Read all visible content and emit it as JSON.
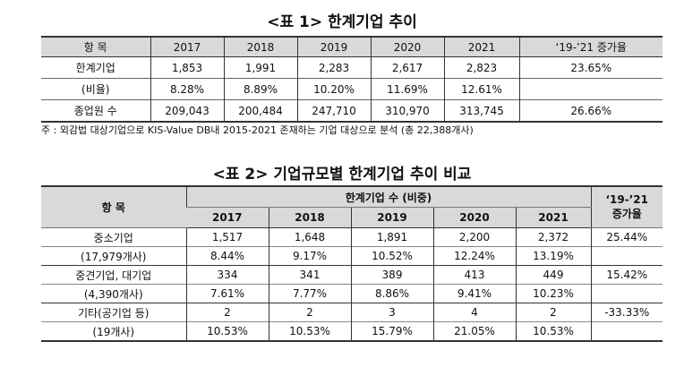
{
  "table1": {
    "title": "<표 1> 한계기업 추이",
    "headers": [
      "항 목",
      "2017",
      "2018",
      "2019",
      "2020",
      "2021",
      "‘19-’21 증가율"
    ],
    "rows": [
      [
        "한계기업",
        "1,853",
        "1,991",
        "2,283",
        "2,617",
        "2,823",
        "23.65%"
      ],
      [
        "(비율)",
        "8.28%",
        "8.89%",
        "10.20%",
        "11.69%",
        "12.61%",
        ""
      ],
      [
        "종업원 수",
        "209,043",
        "200,484",
        "247,710",
        "310,970",
        "313,745",
        "26.66%"
      ]
    ],
    "footnote": "주 : 외감법 대상기업으로 KIS-Value DB내 2015-2021 존재하는 기업 대상으로 분석 (총 22,388개사)"
  },
  "table2": {
    "title": "<표 2> 기업규모별 한계기업 추이 비교",
    "header_item": "항 목",
    "header_group": "한계기업 수 (비중)",
    "header_growth_line1": "‘19-’21",
    "header_growth_line2": "증가율",
    "years": [
      "2017",
      "2018",
      "2019",
      "2020",
      "2021"
    ],
    "groups": [
      {
        "name": "중소기업",
        "sub": "(17,979개사)",
        "counts": [
          "1,517",
          "1,648",
          "1,891",
          "2,200",
          "2,372"
        ],
        "shares": [
          "8.44%",
          "9.17%",
          "10.52%",
          "12.24%",
          "13.19%"
        ],
        "growth": "25.44%"
      },
      {
        "name": "중견기업, 대기업",
        "sub": "(4,390개사)",
        "counts": [
          "334",
          "341",
          "389",
          "413",
          "449"
        ],
        "shares": [
          "7.61%",
          "7.77%",
          "8.86%",
          "9.41%",
          "10.23%"
        ],
        "growth": "15.42%"
      },
      {
        "name": "기타(공기업 등)",
        "sub": "(19개사)",
        "counts": [
          "2",
          "2",
          "3",
          "4",
          "2"
        ],
        "shares": [
          "10.53%",
          "10.53%",
          "15.79%",
          "21.05%",
          "10.53%"
        ],
        "growth": "-33.33%"
      }
    ]
  }
}
